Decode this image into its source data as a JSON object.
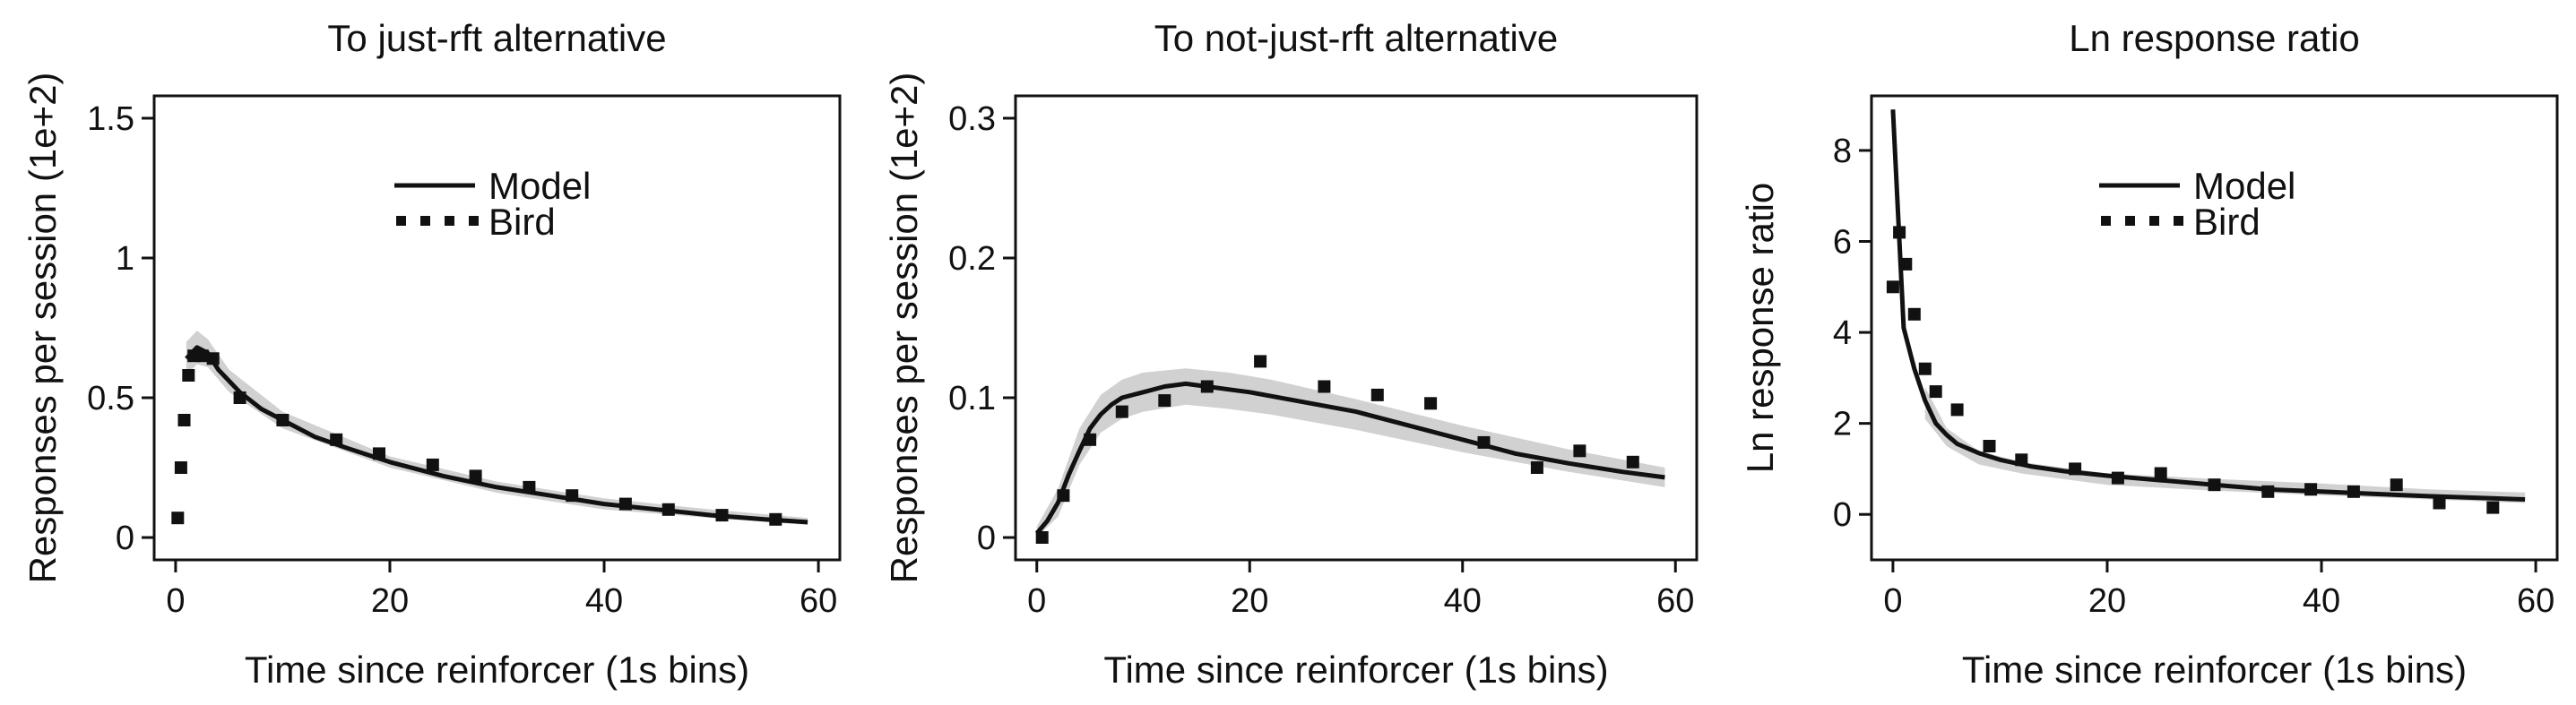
{
  "chart_data": [
    {
      "type": "line",
      "title": "To just-rft alternative",
      "xlabel": "Time since reinforcer (1s bins)",
      "ylabel": "Responses per session (1e+2)",
      "xlim": [
        -2,
        62
      ],
      "ylim": [
        -0.08,
        1.58
      ],
      "xticks": [
        0,
        20,
        40,
        60
      ],
      "xtick_labels": [
        "0",
        "20",
        "40",
        "60"
      ],
      "yticks": [
        0,
        0.5,
        1,
        1.5
      ],
      "ytick_labels": [
        "0",
        "0.5",
        "1",
        "1.5"
      ],
      "legend": {
        "position": "top-center",
        "entries": [
          "Model",
          "Bird"
        ]
      },
      "band": {
        "x": [
          1,
          2,
          3,
          5,
          10,
          20,
          30,
          40,
          50,
          59
        ],
        "lower": [
          0.58,
          0.62,
          0.61,
          0.52,
          0.39,
          0.25,
          0.16,
          0.1,
          0.07,
          0.045
        ],
        "upper": [
          0.7,
          0.74,
          0.71,
          0.6,
          0.45,
          0.29,
          0.2,
          0.14,
          0.1,
          0.07
        ]
      },
      "series": [
        {
          "name": "Model",
          "style": "solid",
          "x": [
            1,
            2,
            3,
            4,
            6,
            8,
            10,
            13,
            16,
            20,
            25,
            30,
            35,
            40,
            45,
            50,
            55,
            59
          ],
          "y": [
            0.64,
            0.68,
            0.66,
            0.6,
            0.52,
            0.46,
            0.42,
            0.36,
            0.32,
            0.27,
            0.22,
            0.18,
            0.15,
            0.12,
            0.1,
            0.08,
            0.065,
            0.055
          ]
        },
        {
          "name": "Bird",
          "style": "dotted",
          "x": [
            0.2,
            0.5,
            0.8,
            1.2,
            1.7,
            2.5,
            3.5,
            6,
            10,
            15,
            19,
            24,
            28,
            33,
            37,
            42,
            46,
            51,
            56
          ],
          "y": [
            0.07,
            0.25,
            0.42,
            0.58,
            0.65,
            0.65,
            0.64,
            0.5,
            0.42,
            0.35,
            0.3,
            0.26,
            0.22,
            0.18,
            0.15,
            0.12,
            0.1,
            0.08,
            0.065
          ]
        }
      ]
    },
    {
      "type": "line",
      "title": "To not-just-rft alternative",
      "xlabel": "Time since reinforcer (1s bins)",
      "ylabel": "Responses per session (1e+2)",
      "xlim": [
        -2,
        62
      ],
      "ylim": [
        -0.016,
        0.316
      ],
      "xticks": [
        0,
        20,
        40,
        60
      ],
      "xtick_labels": [
        "0",
        "20",
        "40",
        "60"
      ],
      "yticks": [
        0,
        0.1,
        0.2,
        0.3
      ],
      "ytick_labels": [
        "0",
        "0.1",
        "0.2",
        "0.3"
      ],
      "band": {
        "x": [
          0,
          2,
          4,
          6,
          8,
          10,
          14,
          18,
          22,
          30,
          40,
          50,
          59
        ],
        "lower": [
          0.0,
          0.015,
          0.052,
          0.075,
          0.085,
          0.09,
          0.095,
          0.092,
          0.088,
          0.077,
          0.061,
          0.047,
          0.036
        ],
        "upper": [
          0.008,
          0.035,
          0.078,
          0.102,
          0.113,
          0.118,
          0.121,
          0.118,
          0.113,
          0.099,
          0.08,
          0.063,
          0.05
        ]
      },
      "series": [
        {
          "name": "Model",
          "style": "solid",
          "x": [
            0,
            1,
            2,
            3,
            4,
            5,
            6,
            7,
            8,
            10,
            12,
            14,
            16,
            18,
            20,
            25,
            30,
            35,
            40,
            45,
            50,
            55,
            59
          ],
          "y": [
            0.003,
            0.012,
            0.025,
            0.045,
            0.062,
            0.078,
            0.088,
            0.095,
            0.1,
            0.104,
            0.108,
            0.11,
            0.108,
            0.106,
            0.104,
            0.097,
            0.09,
            0.08,
            0.07,
            0.06,
            0.053,
            0.047,
            0.043
          ]
        },
        {
          "name": "Bird",
          "style": "dotted",
          "x": [
            0.5,
            2.5,
            5,
            8,
            12,
            16,
            21,
            27,
            32,
            37,
            42,
            47,
            51,
            56
          ],
          "y": [
            0.0,
            0.03,
            0.07,
            0.09,
            0.098,
            0.108,
            0.126,
            0.108,
            0.102,
            0.096,
            0.068,
            0.05,
            0.062,
            0.054
          ]
        }
      ]
    },
    {
      "type": "line",
      "title": "Ln response ratio",
      "xlabel": "Time since reinforcer (1s bins)",
      "ylabel": "Ln response ratio",
      "xlim": [
        -2,
        62
      ],
      "ylim": [
        -1.0,
        9.2
      ],
      "xticks": [
        0,
        20,
        40,
        60
      ],
      "xtick_labels": [
        "0",
        "20",
        "40",
        "60"
      ],
      "yticks": [
        0,
        2,
        4,
        6,
        8
      ],
      "ytick_labels": [
        "0",
        "2",
        "4",
        "6",
        "8"
      ],
      "legend": {
        "position": "top-center",
        "entries": [
          "Model",
          "Bird"
        ]
      },
      "band": {
        "x": [
          3,
          5,
          8,
          12,
          20,
          30,
          40,
          50,
          59
        ],
        "lower": [
          2.1,
          1.5,
          1.1,
          0.9,
          0.65,
          0.52,
          0.42,
          0.33,
          0.25
        ],
        "upper": [
          2.8,
          1.9,
          1.4,
          1.15,
          0.9,
          0.78,
          0.68,
          0.55,
          0.48
        ]
      },
      "series": [
        {
          "name": "Model",
          "style": "solid",
          "x": [
            0,
            0.5,
            1,
            2,
            3,
            4,
            5,
            6,
            8,
            10,
            13,
            16,
            20,
            25,
            30,
            35,
            40,
            45,
            50,
            55,
            59
          ],
          "y": [
            8.9,
            6.5,
            4.1,
            3.2,
            2.5,
            2.0,
            1.75,
            1.55,
            1.35,
            1.2,
            1.05,
            0.95,
            0.85,
            0.75,
            0.65,
            0.55,
            0.5,
            0.45,
            0.4,
            0.36,
            0.33
          ]
        },
        {
          "name": "Bird",
          "style": "dotted",
          "x": [
            0,
            0.6,
            1.2,
            2,
            3,
            4,
            6,
            9,
            12,
            17,
            21,
            25,
            30,
            35,
            39,
            43,
            47,
            51,
            56
          ],
          "y": [
            5.0,
            6.2,
            5.5,
            4.4,
            3.2,
            2.7,
            2.3,
            1.5,
            1.2,
            1.0,
            0.8,
            0.9,
            0.65,
            0.5,
            0.55,
            0.5,
            0.65,
            0.25,
            0.15
          ]
        }
      ]
    }
  ]
}
